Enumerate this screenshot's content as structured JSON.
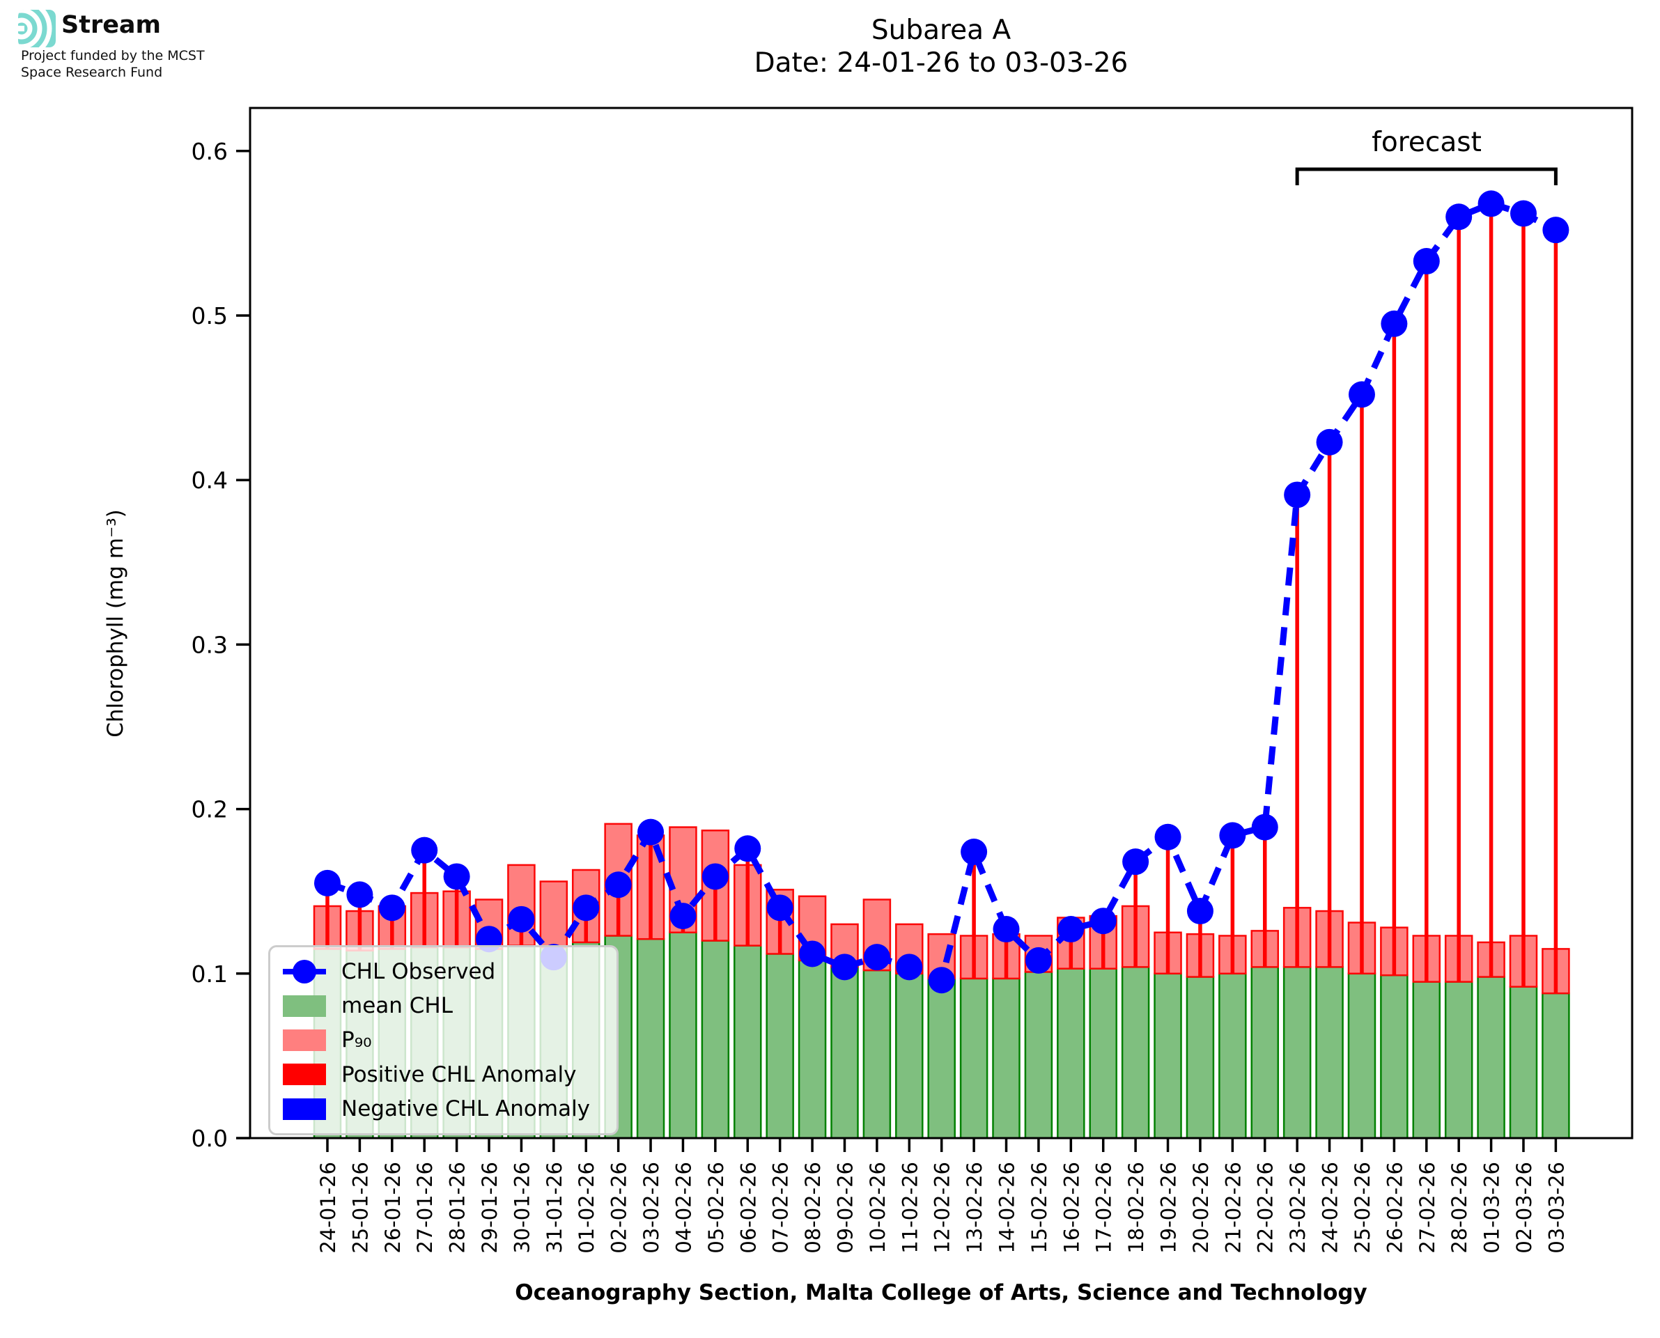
{
  "logo": {
    "brand": "Stream",
    "funding_line1": "Project funded by the MCST",
    "funding_line2": "Space Research Fund",
    "icon": "ripple-arcs-icon",
    "icon_color": "#7bd9d0"
  },
  "title": {
    "line1": "Subarea A",
    "line2": "Date: 24-01-26 to 03-03-26"
  },
  "axes": {
    "ylabel": "Chlorophyll (mg m⁻³)",
    "xlabel": "Oceanography Section, Malta College of Arts, Science and Technology",
    "yticks": [
      "0.0",
      "0.1",
      "0.2",
      "0.3",
      "0.4",
      "0.5",
      "0.6"
    ]
  },
  "annotation": {
    "forecast_label": "forecast",
    "forecast_start_index": 30,
    "forecast_end_index": 38
  },
  "legend": {
    "items": [
      {
        "label": "CHL Observed",
        "type": "line-marker",
        "color": "#0000ff"
      },
      {
        "label": "mean CHL",
        "type": "patch",
        "color": "#7fbf7f"
      },
      {
        "label": "P₉₀",
        "type": "patch",
        "color": "#ff7f7f"
      },
      {
        "label": "Positive CHL Anomaly",
        "type": "patch",
        "color": "#ff0000"
      },
      {
        "label": "Negative CHL Anomaly",
        "type": "patch",
        "color": "#0000ff"
      }
    ]
  },
  "chart_data": {
    "type": "bar",
    "title": "Subarea A — Date: 24-01-26 to 03-03-26",
    "xlabel": "Oceanography Section, Malta College of Arts, Science and Technology",
    "ylabel": "Chlorophyll (mg m⁻³)",
    "ylim": [
      0,
      0.626
    ],
    "grid": false,
    "legend_position": "lower-left",
    "forecast_span": [
      "23-02-26",
      "03-03-26"
    ],
    "categories": [
      "24-01-26",
      "25-01-26",
      "26-01-26",
      "27-01-26",
      "28-01-26",
      "29-01-26",
      "30-01-26",
      "31-01-26",
      "01-02-26",
      "02-02-26",
      "03-02-26",
      "04-02-26",
      "05-02-26",
      "06-02-26",
      "07-02-26",
      "08-02-26",
      "09-02-26",
      "10-02-26",
      "11-02-26",
      "12-02-26",
      "13-02-26",
      "14-02-26",
      "15-02-26",
      "16-02-26",
      "17-02-26",
      "18-02-26",
      "19-02-26",
      "20-02-26",
      "21-02-26",
      "22-02-26",
      "23-02-26",
      "24-02-26",
      "25-02-26",
      "26-02-26",
      "27-02-26",
      "28-02-26",
      "01-03-26",
      "02-03-26",
      "03-03-26"
    ],
    "series": [
      {
        "name": "CHL Observed",
        "type": "line-marker",
        "color": "#0000ff",
        "dashed": true,
        "values": [
          0.155,
          0.148,
          0.14,
          0.175,
          0.159,
          0.121,
          0.133,
          0.11,
          0.14,
          0.154,
          0.186,
          0.135,
          0.159,
          0.176,
          0.14,
          0.112,
          0.104,
          0.11,
          0.104,
          0.096,
          0.174,
          0.127,
          0.108,
          0.127,
          0.132,
          0.168,
          0.183,
          0.138,
          0.184,
          0.189,
          0.391,
          0.423,
          0.452,
          0.495,
          0.533,
          0.56,
          0.568,
          0.562,
          0.552
        ]
      },
      {
        "name": "mean CHL",
        "type": "bar",
        "fill": "#7fbf7f",
        "edge": "#038103",
        "values": [
          0.115,
          0.114,
          0.115,
          0.116,
          0.116,
          0.115,
          0.117,
          0.116,
          0.119,
          0.123,
          0.121,
          0.125,
          0.12,
          0.117,
          0.112,
          0.108,
          0.104,
          0.102,
          0.1,
          0.097,
          0.097,
          0.097,
          0.101,
          0.103,
          0.103,
          0.104,
          0.1,
          0.098,
          0.1,
          0.104,
          0.104,
          0.104,
          0.1,
          0.099,
          0.095,
          0.095,
          0.098,
          0.092,
          0.088
        ]
      },
      {
        "name": "P90",
        "type": "bar",
        "fill": "#ff7f7f",
        "edge": "#fb0707",
        "values": [
          0.141,
          0.138,
          0.141,
          0.149,
          0.15,
          0.145,
          0.166,
          0.156,
          0.163,
          0.191,
          0.184,
          0.189,
          0.187,
          0.166,
          0.151,
          0.147,
          0.13,
          0.145,
          0.13,
          0.124,
          0.123,
          0.124,
          0.123,
          0.134,
          0.135,
          0.141,
          0.125,
          0.124,
          0.123,
          0.126,
          0.14,
          0.138,
          0.131,
          0.128,
          0.123,
          0.123,
          0.119,
          0.123,
          0.115
        ]
      }
    ],
    "anomaly": {
      "positive_color": "#ff0000",
      "negative_color": "#0000ff",
      "note": "stem drawn from mean CHL to CHL Observed for each day"
    }
  }
}
